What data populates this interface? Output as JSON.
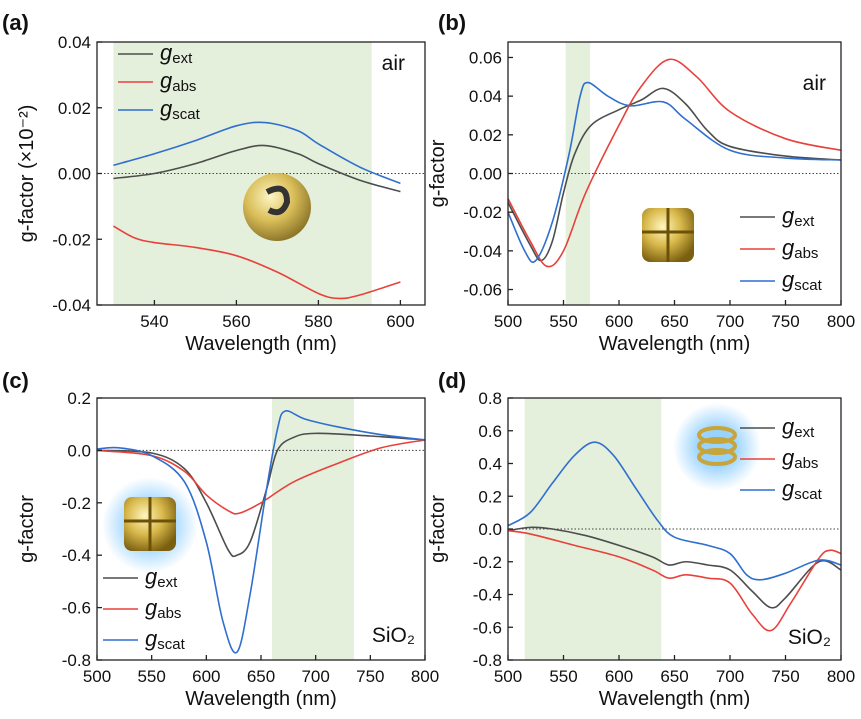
{
  "chart_data": [
    {
      "type": "line",
      "panel_label": "(a)",
      "xlabel": "Wavelength (nm)",
      "ylabel": "g-factor (×10⁻²)",
      "annotation": "air",
      "xlim": [
        526,
        606
      ],
      "xticks": [
        540,
        560,
        580,
        600
      ],
      "ylim": [
        -0.04,
        0.04
      ],
      "yticks": [
        -0.04,
        -0.02,
        {
          "value": 0,
          "label": "0.00"
        },
        0.02,
        0.04
      ],
      "shade": [
        530,
        593
      ],
      "hline": 0,
      "legend": "upper left",
      "series": [
        {
          "name": "gext",
          "color": "#4d4d4d",
          "x": [
            530,
            540,
            550,
            560,
            567,
            575,
            580,
            590,
            600
          ],
          "values": [
            -0.0015,
            0.0,
            0.003,
            0.007,
            0.0085,
            0.006,
            0.003,
            -0.002,
            -0.0055
          ]
        },
        {
          "name": "gabs",
          "color": "#e8413b",
          "x": [
            530,
            535,
            540,
            550,
            560,
            570,
            580,
            585,
            590,
            600
          ],
          "values": [
            -0.016,
            -0.0195,
            -0.021,
            -0.0225,
            -0.025,
            -0.03,
            -0.0365,
            -0.038,
            -0.037,
            -0.033
          ]
        },
        {
          "name": "gscat",
          "color": "#2f6fd0",
          "x": [
            530,
            540,
            550,
            560,
            567,
            575,
            580,
            590,
            600
          ],
          "values": [
            0.0025,
            0.006,
            0.01,
            0.0145,
            0.0155,
            0.013,
            0.009,
            0.002,
            -0.003
          ]
        }
      ]
    },
    {
      "type": "line",
      "panel_label": "(b)",
      "xlabel": "Wavelength (nm)",
      "ylabel": "g-factor",
      "annotation": "air",
      "xlim": [
        500,
        800
      ],
      "xticks": [
        500,
        550,
        600,
        650,
        700,
        750,
        800
      ],
      "ylim": [
        -0.068,
        0.068
      ],
      "yticks": [
        -0.06,
        -0.04,
        -0.02,
        {
          "value": 0,
          "label": "0.00"
        },
        0.02,
        0.04,
        0.06
      ],
      "shade": [
        552,
        574
      ],
      "hline": 0,
      "legend": "lower right",
      "series": [
        {
          "name": "gext",
          "color": "#4d4d4d",
          "x": [
            500,
            520,
            530,
            540,
            550,
            560,
            575,
            600,
            620,
            640,
            660,
            680,
            700,
            750,
            800
          ],
          "values": [
            -0.015,
            -0.037,
            -0.045,
            -0.035,
            -0.01,
            0.01,
            0.025,
            0.033,
            0.038,
            0.044,
            0.036,
            0.022,
            0.014,
            0.009,
            0.007
          ]
        },
        {
          "name": "gabs",
          "color": "#e8413b",
          "x": [
            500,
            520,
            535,
            550,
            570,
            600,
            620,
            645,
            670,
            700,
            750,
            800
          ],
          "values": [
            -0.013,
            -0.035,
            -0.048,
            -0.04,
            -0.01,
            0.025,
            0.045,
            0.059,
            0.05,
            0.032,
            0.018,
            0.012
          ]
        },
        {
          "name": "gscat",
          "color": "#2f6fd0",
          "x": [
            500,
            515,
            525,
            540,
            555,
            565,
            572,
            590,
            610,
            640,
            660,
            700,
            750,
            800
          ],
          "values": [
            -0.02,
            -0.04,
            -0.045,
            -0.025,
            0.01,
            0.04,
            0.047,
            0.04,
            0.035,
            0.037,
            0.028,
            0.012,
            0.008,
            0.007
          ]
        }
      ]
    },
    {
      "type": "line",
      "panel_label": "(c)",
      "xlabel": "Wavelength (nm)",
      "ylabel": "g-factor",
      "annotation": "SiO₂",
      "xlim": [
        500,
        800
      ],
      "xticks": [
        500,
        550,
        600,
        650,
        700,
        750,
        800
      ],
      "ylim": [
        -0.8,
        0.2
      ],
      "yticks": [
        -0.8,
        -0.6,
        -0.4,
        -0.2,
        {
          "value": 0,
          "label": "0.0"
        },
        0.2
      ],
      "shade": [
        660,
        735
      ],
      "hline": 0,
      "legend": "lower left",
      "series": [
        {
          "name": "gext",
          "color": "#4d4d4d",
          "x": [
            500,
            550,
            580,
            600,
            620,
            628,
            640,
            655,
            665,
            680,
            700,
            750,
            800
          ],
          "values": [
            0,
            -0.01,
            -0.07,
            -0.2,
            -0.38,
            -0.4,
            -0.35,
            -0.15,
            0,
            0.05,
            0.065,
            0.055,
            0.04
          ]
        },
        {
          "name": "gabs",
          "color": "#e8413b",
          "x": [
            500,
            550,
            580,
            600,
            620,
            630,
            650,
            680,
            720,
            760,
            800
          ],
          "values": [
            0,
            -0.02,
            -0.08,
            -0.17,
            -0.23,
            -0.24,
            -0.2,
            -0.12,
            -0.05,
            0.01,
            0.04
          ]
        },
        {
          "name": "gscat",
          "color": "#2f6fd0",
          "x": [
            500,
            520,
            550,
            580,
            600,
            615,
            628,
            640,
            655,
            665,
            672,
            690,
            720,
            760,
            800
          ],
          "values": [
            0.005,
            0.01,
            -0.02,
            -0.12,
            -0.35,
            -0.65,
            -0.77,
            -0.55,
            -0.15,
            0.08,
            0.15,
            0.12,
            0.09,
            0.06,
            0.04
          ]
        }
      ]
    },
    {
      "type": "line",
      "panel_label": "(d)",
      "xlabel": "Wavelength (nm)",
      "ylabel": "g-factor",
      "annotation": "SiO₂",
      "xlim": [
        500,
        800
      ],
      "xticks": [
        500,
        550,
        600,
        650,
        700,
        750,
        800
      ],
      "ylim": [
        -0.8,
        0.8
      ],
      "yticks": [
        -0.8,
        -0.6,
        -0.4,
        -0.2,
        {
          "value": 0,
          "label": "0.0"
        },
        0.2,
        0.4,
        0.6,
        0.8
      ],
      "shade": [
        515,
        638
      ],
      "hline": 0,
      "legend": "upper right",
      "series": [
        {
          "name": "gext",
          "color": "#4d4d4d",
          "x": [
            500,
            520,
            540,
            570,
            600,
            630,
            645,
            660,
            680,
            700,
            720,
            737,
            750,
            780,
            800
          ],
          "values": [
            -0.01,
            0.01,
            0.0,
            -0.04,
            -0.1,
            -0.17,
            -0.22,
            -0.2,
            -0.22,
            -0.25,
            -0.38,
            -0.48,
            -0.42,
            -0.2,
            -0.25
          ]
        },
        {
          "name": "gabs",
          "color": "#e8413b",
          "x": [
            500,
            520,
            560,
            600,
            630,
            645,
            660,
            680,
            700,
            720,
            737,
            755,
            780,
            790,
            800
          ],
          "values": [
            -0.01,
            -0.03,
            -0.1,
            -0.17,
            -0.25,
            -0.3,
            -0.28,
            -0.3,
            -0.33,
            -0.52,
            -0.62,
            -0.45,
            -0.18,
            -0.13,
            -0.15
          ]
        },
        {
          "name": "gscat",
          "color": "#2f6fd0",
          "x": [
            500,
            520,
            540,
            560,
            578,
            595,
            615,
            635,
            650,
            680,
            700,
            715,
            728,
            750,
            780,
            800
          ],
          "values": [
            0.02,
            0.1,
            0.28,
            0.45,
            0.53,
            0.45,
            0.25,
            0.05,
            -0.05,
            -0.1,
            -0.15,
            -0.28,
            -0.31,
            -0.27,
            -0.19,
            -0.22
          ]
        }
      ]
    }
  ]
}
